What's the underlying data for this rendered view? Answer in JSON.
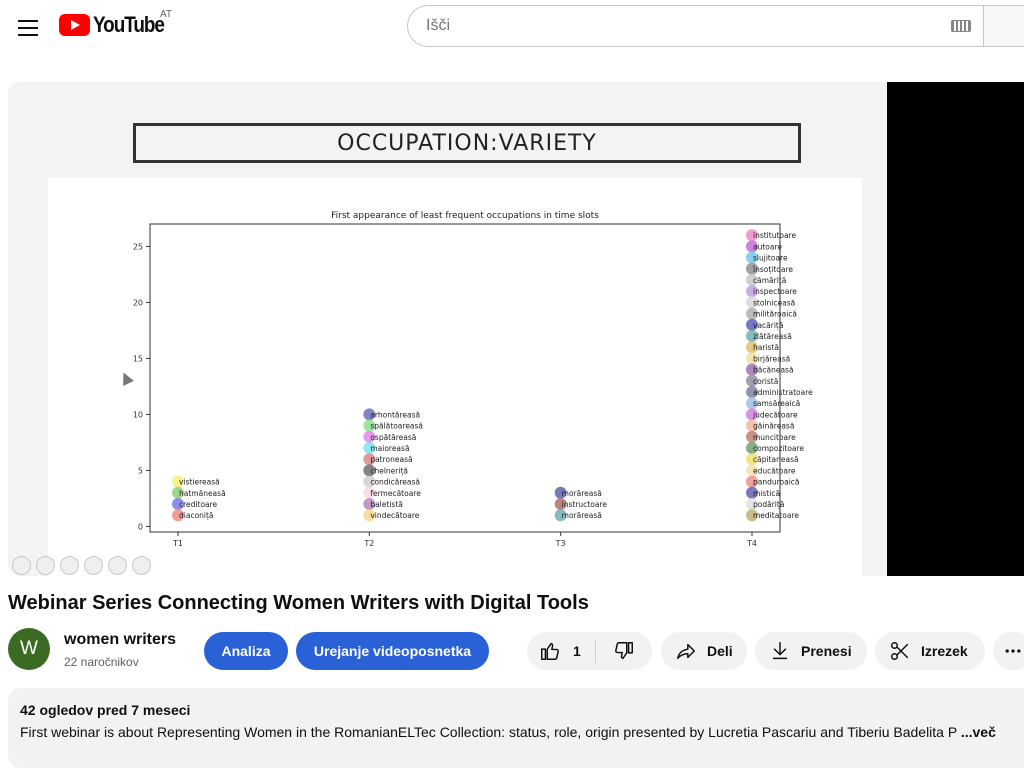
{
  "header": {
    "logo_text": "YouTube",
    "country_code": "AT",
    "search_placeholder": "Išči"
  },
  "slide": {
    "heading": "OCCUPATION:VARIETY"
  },
  "chart_data": {
    "type": "scatter",
    "title": "First appearance of least frequent occupations in time slots",
    "xlabel": "",
    "ylabel": "",
    "categories": [
      "T1",
      "T2",
      "T3",
      "T4"
    ],
    "ylim": [
      -0.5,
      27
    ],
    "yticks": [
      0,
      5,
      10,
      15,
      20,
      25
    ],
    "grid": false,
    "points": [
      {
        "x": "T1",
        "y": 4,
        "label": "vistiereasă",
        "color": "#f5f07a"
      },
      {
        "x": "T1",
        "y": 3,
        "label": "hatmăneasă",
        "color": "#8fd07a"
      },
      {
        "x": "T1",
        "y": 2,
        "label": "creditoare",
        "color": "#7a7ae6"
      },
      {
        "x": "T1",
        "y": 1,
        "label": "diaconiță",
        "color": "#f08a8a"
      },
      {
        "x": "T2",
        "y": 10,
        "label": "arhontăreasă",
        "color": "#6f6fb8"
      },
      {
        "x": "T2",
        "y": 9,
        "label": "spălătoareasă",
        "color": "#8ee08e"
      },
      {
        "x": "T2",
        "y": 8,
        "label": "ospătăreasă",
        "color": "#e088f0"
      },
      {
        "x": "T2",
        "y": 7,
        "label": "maioreasă",
        "color": "#80e0f0"
      },
      {
        "x": "T2",
        "y": 6,
        "label": "patroneasă",
        "color": "#d88a8a"
      },
      {
        "x": "T2",
        "y": 5,
        "label": "chelneriță",
        "color": "#707070"
      },
      {
        "x": "T2",
        "y": 4,
        "label": "condicăreasă",
        "color": "#d0d0d0"
      },
      {
        "x": "T2",
        "y": 3,
        "label": "fermecătoare",
        "color": "#f8d8e0"
      },
      {
        "x": "T2",
        "y": 2,
        "label": "baletistă",
        "color": "#b888b8"
      },
      {
        "x": "T2",
        "y": 1,
        "label": "vindecătoare",
        "color": "#f8d890"
      },
      {
        "x": "T3",
        "y": 3,
        "label": "morăreasă",
        "color": "#6060b0"
      },
      {
        "x": "T3",
        "y": 2,
        "label": "instructoare",
        "color": "#b07070"
      },
      {
        "x": "T3",
        "y": 1,
        "label": "morăreasă",
        "color": "#70b0b0"
      },
      {
        "x": "T4",
        "y": 26,
        "label": "institutoare",
        "color": "#f088c8"
      },
      {
        "x": "T4",
        "y": 25,
        "label": "autoare",
        "color": "#c070d0"
      },
      {
        "x": "T4",
        "y": 24,
        "label": "slujitoare",
        "color": "#70c8e8"
      },
      {
        "x": "T4",
        "y": 23,
        "label": "însoțitoare",
        "color": "#909090"
      },
      {
        "x": "T4",
        "y": 22,
        "label": "cămăriță",
        "color": "#c8c8c8"
      },
      {
        "x": "T4",
        "y": 21,
        "label": "inspectoare",
        "color": "#c0a0e0"
      },
      {
        "x": "T4",
        "y": 20,
        "label": "stolniceasă",
        "color": "#d8d8d8"
      },
      {
        "x": "T4",
        "y": 19,
        "label": "milităroaică",
        "color": "#b0b0b0"
      },
      {
        "x": "T4",
        "y": 18,
        "label": "vacăriță",
        "color": "#6060c0"
      },
      {
        "x": "T4",
        "y": 17,
        "label": "zlătăreasă",
        "color": "#70b0b0"
      },
      {
        "x": "T4",
        "y": 16,
        "label": "haristă",
        "color": "#e0c070"
      },
      {
        "x": "T4",
        "y": 15,
        "label": "birjăreasă",
        "color": "#f0e0a0"
      },
      {
        "x": "T4",
        "y": 14,
        "label": "băcăneasă",
        "color": "#a070b0"
      },
      {
        "x": "T4",
        "y": 13,
        "label": "coristă",
        "color": "#9090a0"
      },
      {
        "x": "T4",
        "y": 12,
        "label": "administratoare",
        "color": "#8080a0"
      },
      {
        "x": "T4",
        "y": 11,
        "label": "samsăreaică",
        "color": "#a0c0e0"
      },
      {
        "x": "T4",
        "y": 10,
        "label": "judecătoare",
        "color": "#d080e0"
      },
      {
        "x": "T4",
        "y": 9,
        "label": "găinăreasă",
        "color": "#f0b8a0"
      },
      {
        "x": "T4",
        "y": 8,
        "label": "muncitoare",
        "color": "#c08070"
      },
      {
        "x": "T4",
        "y": 7,
        "label": "compozitoare",
        "color": "#70a070"
      },
      {
        "x": "T4",
        "y": 6,
        "label": "căpitaneasă",
        "color": "#f0e070"
      },
      {
        "x": "T4",
        "y": 5,
        "label": "educătoare",
        "color": "#f8e0b0"
      },
      {
        "x": "T4",
        "y": 4,
        "label": "panduroaică",
        "color": "#f09090"
      },
      {
        "x": "T4",
        "y": 3,
        "label": "mistică",
        "color": "#6060b0"
      },
      {
        "x": "T4",
        "y": 2,
        "label": "podăriță",
        "color": "#e0e0e0"
      },
      {
        "x": "T4",
        "y": 1,
        "label": "meditatoare",
        "color": "#c0b070"
      }
    ]
  },
  "video": {
    "title": "Webinar Series Connecting Women Writers with Digital Tools"
  },
  "channel": {
    "avatar_letter": "W",
    "avatar_color": "#3b6a23",
    "name": "women writers",
    "subscribers": "22 naročnikov"
  },
  "actions": {
    "analytics_label": "Analiza",
    "edit_label": "Urejanje videoposnetka",
    "like_count": "1",
    "share_label": "Deli",
    "download_label": "Prenesi",
    "clip_label": "Izrezek",
    "accent_color": "#2b61d6"
  },
  "description": {
    "meta": "42 ogledov  pred 7 meseci",
    "text": "First webinar is about Representing Women in the RomanianELTec Collection: status, role, origin presented by Lucretia Pascariu and Tiberiu Badelita P",
    "more_label": "...več"
  }
}
